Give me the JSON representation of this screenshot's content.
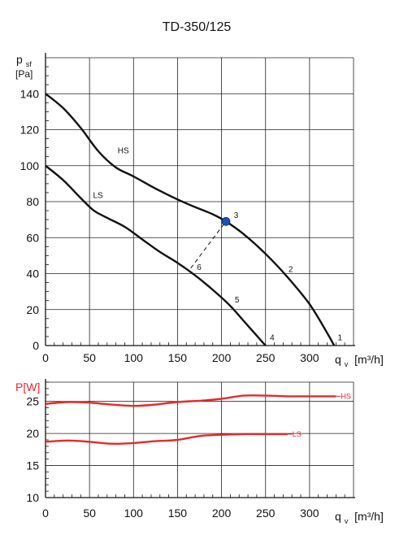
{
  "chart_data": [
    {
      "type": "line",
      "title": "TD-350/125",
      "ylabel": "p_sf",
      "ylabel_unit": "[Pa]",
      "xlabel": "q_v [m³/h]",
      "xlim": [
        0,
        350
      ],
      "ylim": [
        0,
        160
      ],
      "xticks": [
        0,
        50,
        100,
        150,
        200,
        250,
        300
      ],
      "yticks": [
        0,
        20,
        40,
        60,
        80,
        100,
        120,
        140
      ],
      "grid": true,
      "series": [
        {
          "name": "HS",
          "x": [
            0,
            20,
            40,
            60,
            80,
            100,
            130,
            160,
            190,
            205,
            225,
            250,
            275,
            300,
            320,
            328
          ],
          "y": [
            140,
            132,
            121,
            108,
            99,
            94,
            86,
            79,
            73,
            69,
            62,
            51,
            38,
            23,
            7,
            0
          ]
        },
        {
          "name": "LS",
          "x": [
            0,
            20,
            40,
            55,
            70,
            90,
            110,
            130,
            150,
            170,
            190,
            210,
            230,
            250
          ],
          "y": [
            100,
            92,
            82,
            75,
            71,
            66,
            59,
            52,
            46,
            39,
            31,
            22,
            11,
            0
          ]
        }
      ],
      "operating_point": {
        "x": 205,
        "y": 69,
        "label": "3",
        "color": "#1f4fb2"
      },
      "annotations": [
        {
          "text": "HS",
          "x": 82,
          "y": 107
        },
        {
          "text": "LS",
          "x": 54,
          "y": 82
        },
        {
          "text": "2",
          "x": 276,
          "y": 41
        },
        {
          "text": "3",
          "x": 214,
          "y": 71
        },
        {
          "text": "5",
          "x": 215,
          "y": 24
        },
        {
          "text": "6",
          "x": 172,
          "y": 42
        },
        {
          "text": "4",
          "x": 255,
          "y": 3
        },
        {
          "text": "1",
          "x": 332,
          "y": 3
        }
      ],
      "guide_line": {
        "x": [
          165,
          205
        ],
        "y": [
          43,
          69
        ]
      }
    },
    {
      "type": "line",
      "ylabel": "P[W]",
      "xlabel": "q_v [m³/h]",
      "xlim": [
        0,
        350
      ],
      "ylim": [
        10,
        28
      ],
      "xticks": [
        0,
        50,
        100,
        150,
        200,
        250,
        300
      ],
      "yticks": [
        10,
        15,
        20,
        25
      ],
      "grid": true,
      "series": [
        {
          "name": "HS",
          "x": [
            0,
            25,
            50,
            75,
            100,
            125,
            150,
            175,
            200,
            225,
            250,
            275,
            300,
            330
          ],
          "y": [
            24.6,
            24.9,
            24.8,
            24.5,
            24.3,
            24.5,
            24.9,
            25.1,
            25.4,
            25.9,
            25.9,
            25.8,
            25.8,
            25.8
          ],
          "color": "#e52a2a"
        },
        {
          "name": "LS",
          "x": [
            0,
            25,
            50,
            75,
            100,
            125,
            150,
            175,
            200,
            225,
            250,
            275
          ],
          "y": [
            18.7,
            18.9,
            18.7,
            18.4,
            18.5,
            18.8,
            19.0,
            19.6,
            19.8,
            19.9,
            19.9,
            19.9
          ],
          "color": "#e52a2a"
        }
      ],
      "reference_lines": [
        25,
        20
      ]
    }
  ],
  "labels": {
    "title": "TD-350/125",
    "top_y_symbol": "p",
    "top_y_sub": "sf",
    "top_y_unit": "[Pa]",
    "bottom_y_label": "P[W]",
    "x_symbol": "q",
    "x_sub": "v",
    "x_unit": "[m³/h]"
  },
  "colors": {
    "curve_black": "#111111",
    "curve_red": "#e52a2a",
    "point_blue": "#1f4fb2"
  }
}
